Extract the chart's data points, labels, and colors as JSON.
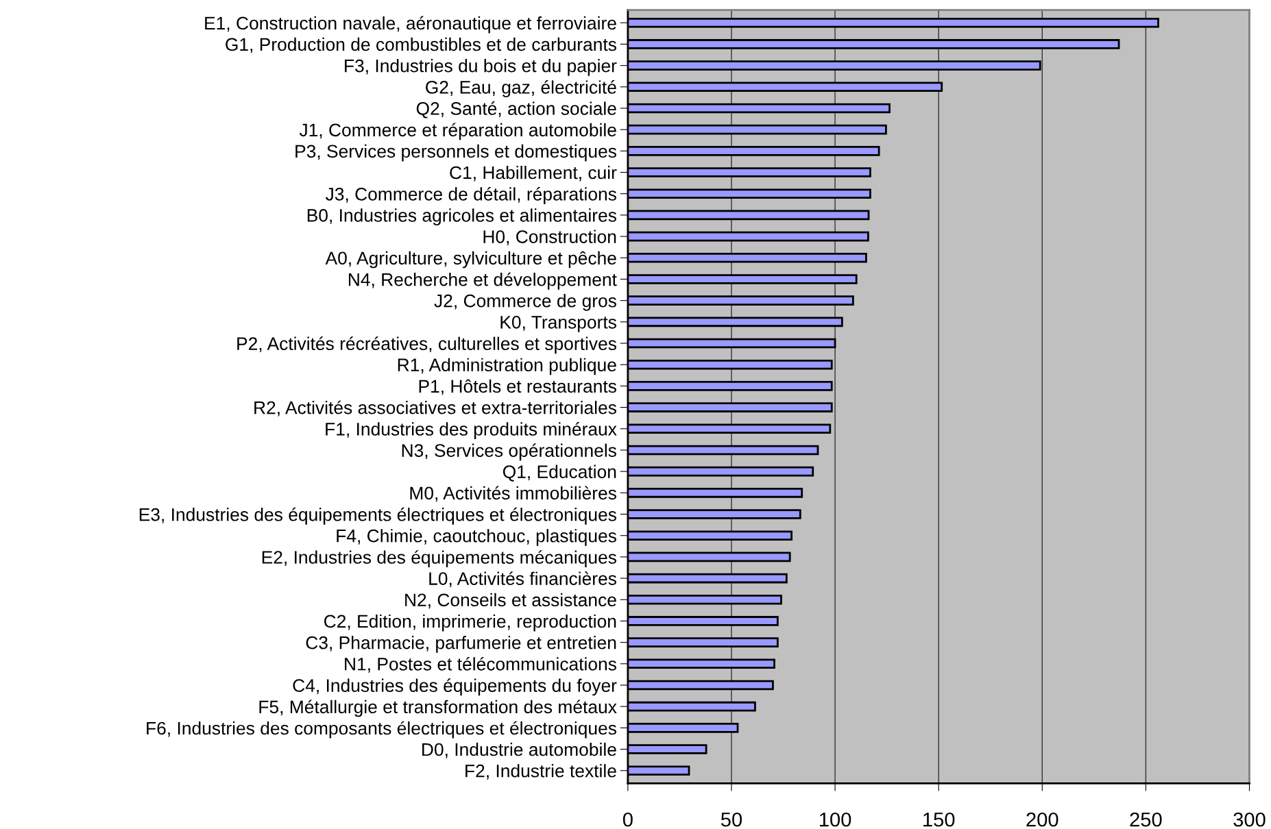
{
  "chart_data": {
    "type": "bar",
    "orientation": "horizontal",
    "categories": [
      "E1, Construction navale, aéronautique et ferroviaire",
      "G1, Production de combustibles et de carburants",
      "F3, Industries du bois et du papier",
      "G2, Eau, gaz, électricité",
      "Q2, Santé, action sociale",
      "J1, Commerce et réparation automobile",
      "P3, Services personnels et domestiques",
      "C1, Habillement, cuir",
      "J3, Commerce de détail, réparations",
      "B0, Industries agricoles et alimentaires",
      "H0, Construction",
      "A0, Agriculture, sylviculture et pêche",
      "N4, Recherche et développement",
      "J2, Commerce de gros",
      "K0, Transports",
      "P2, Activités récréatives, culturelles et sportives",
      "R1, Administration publique",
      "P1, Hôtels et restaurants",
      "R2, Activités associatives et extra-territoriales",
      "F1, Industries des produits minéraux",
      "N3, Services opérationnels",
      "Q1, Education",
      "M0, Activités immobilières",
      "E3, Industries des équipements électriques et électroniques",
      "F4, Chimie, caoutchouc, plastiques",
      "E2, Industries des équipements mécaniques",
      "L0, Activités financières",
      "N2, Conseils et assistance",
      "C2, Edition, imprimerie, reproduction",
      "C3, Pharmacie, parfumerie et entretien",
      "N1, Postes et télécommunications",
      "C4, Industries des équipements du foyer",
      "F5, Métallurgie et transformation des métaux",
      "F6, Industries des composants électriques et électroniques",
      "D0, Industrie automobile",
      "F2, Industrie textile"
    ],
    "values": [
      256,
      237,
      199,
      151.5,
      126.3,
      124.6,
      121.2,
      117,
      117,
      116.2,
      116,
      115,
      110.3,
      108.7,
      103.4,
      100,
      98.4,
      98.4,
      98.4,
      97.6,
      91.7,
      89.3,
      84,
      83.2,
      79,
      78.2,
      76.6,
      74,
      72.3,
      72.3,
      70.7,
      70,
      61.4,
      53,
      37.8,
      29.5
    ],
    "color": "#9999ff",
    "xlim": [
      0,
      300
    ],
    "xticks": [
      0,
      50,
      100,
      150,
      200,
      250,
      300
    ],
    "grid": "x",
    "legend": false
  }
}
